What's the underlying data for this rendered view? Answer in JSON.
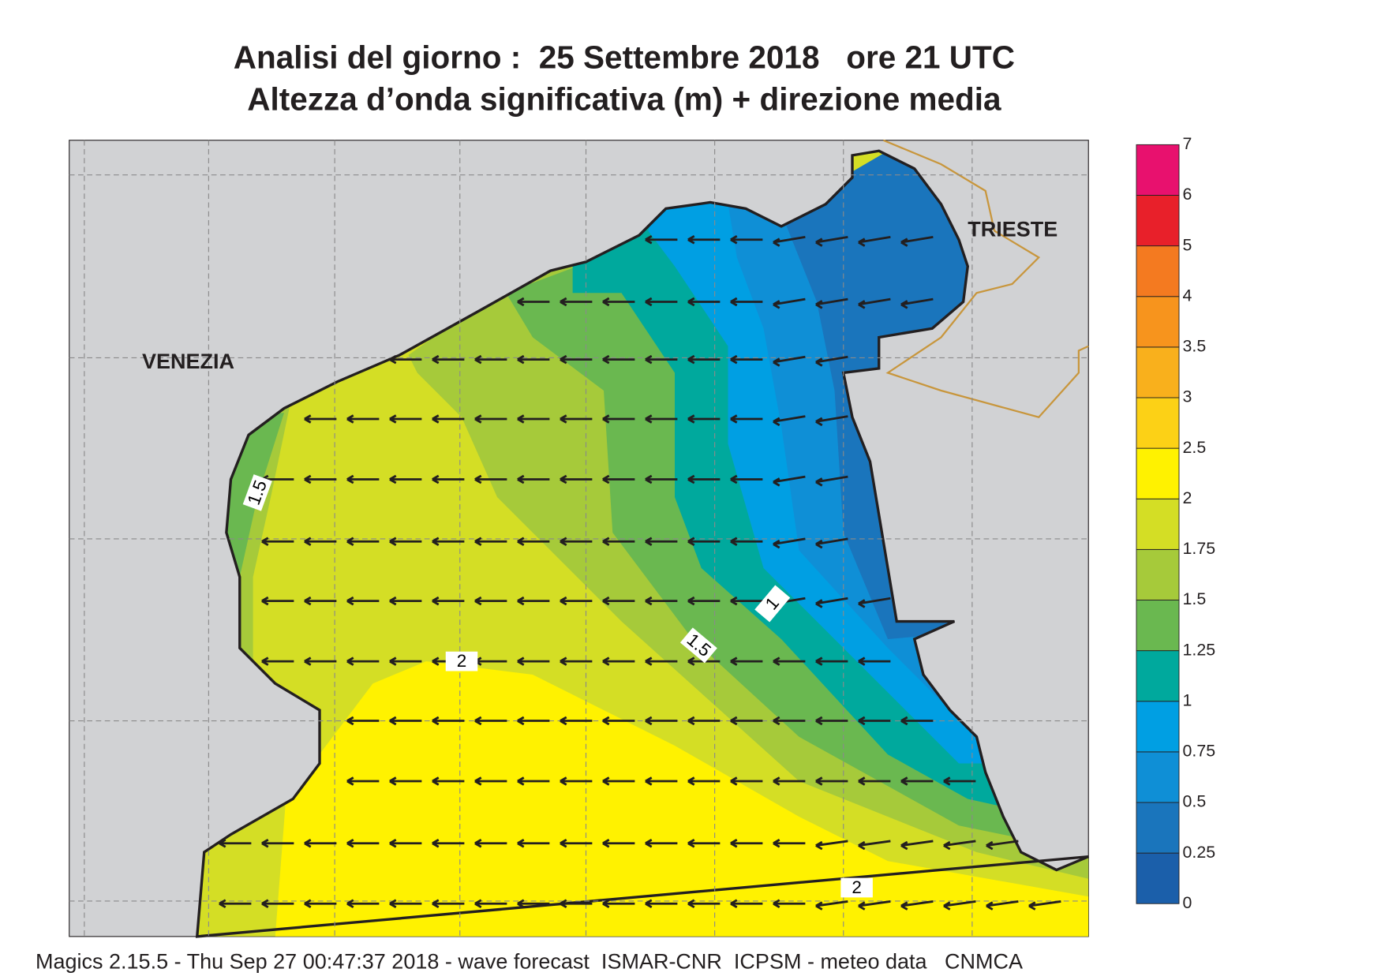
{
  "title": {
    "line1": "Analisi del giorno :  25 Settembre 2018   ore 21 UTC",
    "line2": "Altezza d’onda significativa (m) + direzione media"
  },
  "places": [
    "VENEZIA",
    "TRIESTE"
  ],
  "contour_labels": [
    "1.5",
    "2",
    "1",
    "1.5",
    "2"
  ],
  "legend": {
    "levels": [
      "0",
      "0.25",
      "0.5",
      "0.75",
      "1",
      "1.25",
      "1.5",
      "1.75",
      "2",
      "2.5",
      "3",
      "3.5",
      "4",
      "5",
      "6",
      "7"
    ],
    "colors": [
      "#1b5faa",
      "#1a75bc",
      "#0f8fd6",
      "#009fe3",
      "#00a99d",
      "#6ab850",
      "#a6ca3a",
      "#d4de25",
      "#fff200",
      "#fcd116",
      "#f9b01c",
      "#f7941d",
      "#f47a20",
      "#e8202a",
      "#e8116e"
    ]
  },
  "footer": "Magics 2.15.5 - Thu Sep 27 00:47:37 2018 - wave forecast  ISMAR-CNR  ICPSM - meteo data   CNMCA"
}
